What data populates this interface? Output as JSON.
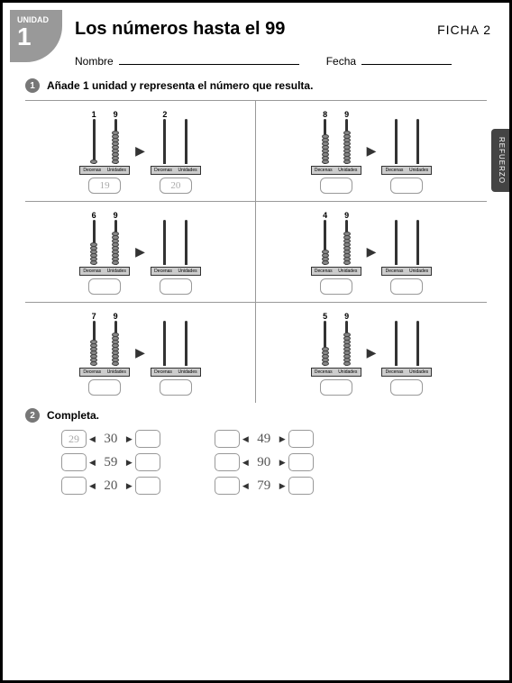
{
  "unit": {
    "label": "UNIDAD",
    "number": "1"
  },
  "title": "Los números hasta el 99",
  "ficha": "FICHA 2",
  "nameLabel": "Nombre",
  "dateLabel": "Fecha",
  "sideTab": "REFUERZO",
  "section1": {
    "num": "1",
    "text": "Añade 1 unidad y representa el número que resulta.",
    "baseLabels": {
      "d": "Decenas",
      "u": "Unidades"
    },
    "arrow": "▶",
    "items": [
      {
        "d": 1,
        "u": 9,
        "ans1": "19",
        "ans2": "20",
        "d2label": "2"
      },
      {
        "d": 8,
        "u": 9,
        "ans1": "",
        "ans2": ""
      },
      {
        "d": 6,
        "u": 9,
        "ans1": "",
        "ans2": ""
      },
      {
        "d": 4,
        "u": 9,
        "ans1": "",
        "ans2": ""
      },
      {
        "d": 7,
        "u": 9,
        "ans1": "",
        "ans2": ""
      },
      {
        "d": 5,
        "u": 9,
        "ans1": "",
        "ans2": ""
      }
    ]
  },
  "section2": {
    "num": "2",
    "text": "Completa.",
    "triL": "◀",
    "triR": "▶",
    "left": [
      {
        "before": "29",
        "mid": "30",
        "after": ""
      },
      {
        "before": "",
        "mid": "59",
        "after": ""
      },
      {
        "before": "",
        "mid": "20",
        "after": ""
      }
    ],
    "right": [
      {
        "before": "",
        "mid": "49",
        "after": ""
      },
      {
        "before": "",
        "mid": "90",
        "after": ""
      },
      {
        "before": "",
        "mid": "79",
        "after": ""
      }
    ]
  },
  "colors": {
    "badge": "#999999",
    "bullet": "#777777",
    "tab": "#444444"
  }
}
